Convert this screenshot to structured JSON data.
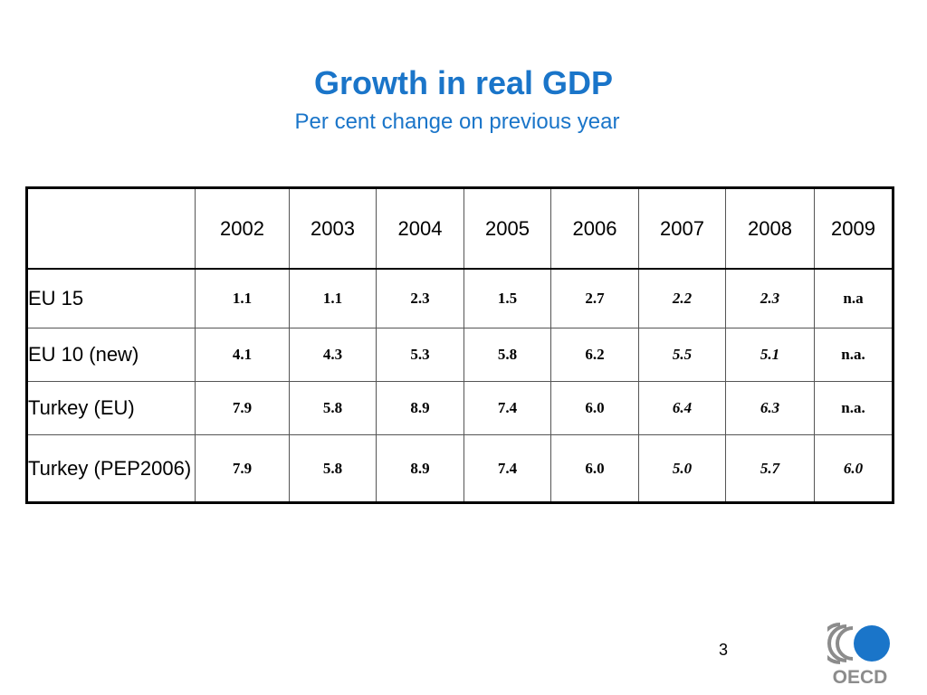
{
  "slide": {
    "title": "Growth in real GDP",
    "subtitle": "Per cent change on previous year",
    "page_number": "3",
    "logo_text": "OECD"
  },
  "colors": {
    "title": "#1a75c9",
    "logo_blue": "#1a75c9",
    "logo_grey": "#8c8c8c"
  },
  "chart_data": {
    "type": "table",
    "title": "Growth in real GDP",
    "subtitle": "Per cent change on previous year",
    "columns": [
      "",
      "2002",
      "2003",
      "2004",
      "2005",
      "2006",
      "2007",
      "2008",
      "2009"
    ],
    "rows": [
      {
        "label": "EU 15",
        "values": [
          "1.1",
          "1.1",
          "2.3",
          "1.5",
          "2.7",
          "2.2",
          "2.3",
          "n.a"
        ],
        "italic": [
          false,
          false,
          false,
          false,
          false,
          true,
          true,
          false
        ]
      },
      {
        "label": "EU 10 (new)",
        "values": [
          "4.1",
          "4.3",
          "5.3",
          "5.8",
          "6.2",
          "5.5",
          "5.1",
          "n.a."
        ],
        "italic": [
          false,
          false,
          false,
          false,
          false,
          true,
          true,
          false
        ]
      },
      {
        "label": "Turkey (EU)",
        "values": [
          "7.9",
          "5.8",
          "8.9",
          "7.4",
          "6.0",
          "6.4",
          "6.3",
          "n.a."
        ],
        "italic": [
          false,
          false,
          false,
          false,
          false,
          true,
          true,
          false
        ]
      },
      {
        "label": "Turkey (PEP2006)",
        "values": [
          "7.9",
          "5.8",
          "8.9",
          "7.4",
          "6.0",
          "5.0",
          "5.7",
          "6.0"
        ],
        "italic": [
          false,
          false,
          false,
          false,
          false,
          true,
          true,
          true
        ]
      }
    ]
  }
}
